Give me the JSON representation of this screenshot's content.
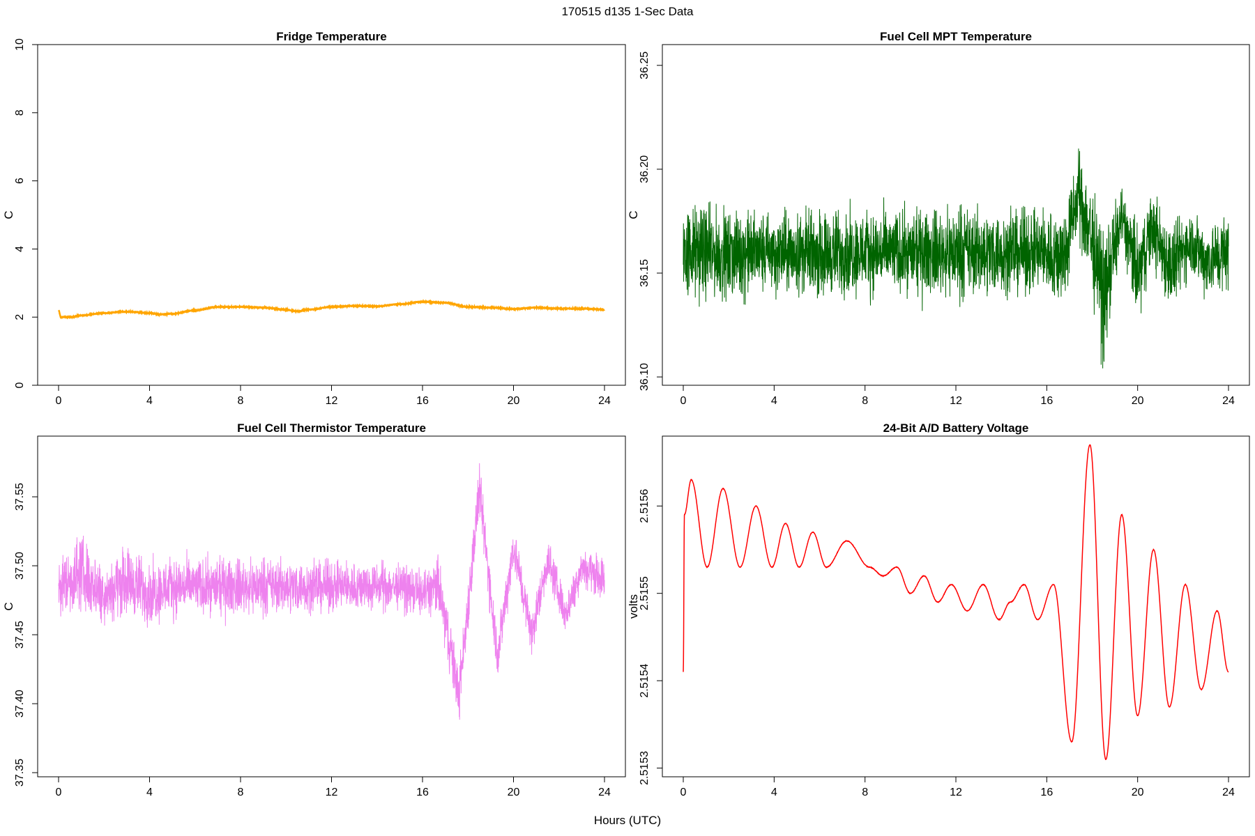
{
  "figure": {
    "title": "170515   d135   1-Sec Data",
    "xlabel": "Hours (UTC)"
  },
  "chart_data": [
    {
      "type": "line",
      "title": "Fridge Temperature",
      "ylabel": "C",
      "xlabel": "Hours (UTC)",
      "color": "#FFA500",
      "xlim": [
        0,
        24
      ],
      "ylim": [
        0,
        10
      ],
      "xticks": [
        0,
        4,
        8,
        12,
        16,
        20,
        24
      ],
      "yticks": [
        0,
        2,
        4,
        6,
        8,
        10
      ],
      "ytick_labels": [
        "0",
        "2",
        "4",
        "6",
        "8",
        "10"
      ],
      "noise": 0.02,
      "x": [
        0,
        0.1,
        0.5,
        1,
        2,
        3,
        4,
        4.5,
        5,
        6,
        7,
        8,
        9,
        10,
        10.5,
        11,
        12,
        13,
        14,
        15,
        16,
        17,
        18,
        19,
        20,
        21,
        22,
        23,
        24
      ],
      "y": [
        2.2,
        2.0,
        2.0,
        2.05,
        2.12,
        2.16,
        2.12,
        2.08,
        2.1,
        2.2,
        2.3,
        2.3,
        2.28,
        2.22,
        2.17,
        2.22,
        2.3,
        2.33,
        2.32,
        2.38,
        2.45,
        2.42,
        2.3,
        2.28,
        2.24,
        2.28,
        2.25,
        2.25,
        2.22
      ]
    },
    {
      "type": "line",
      "title": "Fuel Cell MPT Temperature",
      "ylabel": "C",
      "xlabel": "Hours (UTC)",
      "color": "#006400",
      "xlim": [
        0,
        24
      ],
      "ylim": [
        36.096,
        36.26
      ],
      "xticks": [
        0,
        4,
        8,
        12,
        16,
        20,
        24
      ],
      "yticks": [
        36.1,
        36.15,
        36.2,
        36.25
      ],
      "ytick_labels": [
        "36.10",
        "36.15",
        "36.20",
        "36.25"
      ],
      "baseline": 36.16,
      "x": [
        0,
        1,
        2,
        3,
        4,
        5,
        6,
        7,
        8,
        9,
        10,
        11,
        12,
        13,
        14,
        15,
        16,
        16.7,
        17.4,
        17.9,
        18.5,
        19.3,
        20,
        20.6,
        21.5,
        22.3,
        23,
        24
      ],
      "envelope": [
        0.034,
        0.03,
        0.03,
        0.029,
        0.028,
        0.028,
        0.029,
        0.029,
        0.028,
        0.028,
        0.027,
        0.028,
        0.031,
        0.029,
        0.028,
        0.028,
        0.029,
        0.034,
        0.028,
        0.04,
        0.044,
        0.02,
        0.034,
        0.024,
        0.03,
        0.022,
        0.024,
        0.028
      ],
      "offset": [
        0,
        0,
        -0.002,
        0,
        -0.001,
        0,
        -0.001,
        0,
        0,
        0,
        0,
        0,
        0,
        0,
        0,
        0,
        0,
        -0.004,
        0.028,
        0.01,
        -0.022,
        0.018,
        -0.012,
        0.012,
        -0.008,
        0.006,
        -0.004,
        0
      ]
    },
    {
      "type": "line",
      "title": "Fuel Cell Thermistor Temperature",
      "ylabel": "C",
      "xlabel": "Hours (UTC)",
      "color": "#EE82EE",
      "xlim": [
        0,
        24
      ],
      "ylim": [
        37.347,
        37.594
      ],
      "xticks": [
        0,
        4,
        8,
        12,
        16,
        20,
        24
      ],
      "yticks": [
        37.35,
        37.4,
        37.45,
        37.5,
        37.55
      ],
      "ytick_labels": [
        "37.35",
        "37.40",
        "37.45",
        "37.50",
        "37.55"
      ],
      "baseline": 37.485,
      "x": [
        0,
        1,
        2,
        3,
        4,
        5,
        6,
        7,
        8,
        9,
        10,
        11,
        12,
        13,
        14,
        15,
        16,
        16.7,
        17.3,
        17.6,
        18.5,
        19.3,
        20,
        20.8,
        21.5,
        22.3,
        23,
        24
      ],
      "envelope": [
        0.03,
        0.04,
        0.03,
        0.035,
        0.032,
        0.03,
        0.028,
        0.028,
        0.028,
        0.028,
        0.027,
        0.026,
        0.026,
        0.025,
        0.025,
        0.024,
        0.024,
        0.03,
        0.03,
        0.028,
        0.028,
        0.025,
        0.025,
        0.022,
        0.022,
        0.02,
        0.02,
        0.022
      ],
      "offset": [
        0,
        0.01,
        -0.005,
        0.005,
        -0.005,
        0,
        0,
        0,
        0,
        0,
        0,
        0,
        0,
        0,
        0,
        0,
        -0.005,
        0,
        -0.05,
        -0.08,
        0.07,
        -0.05,
        0.03,
        -0.035,
        0.02,
        -0.02,
        0.015,
        0.005
      ]
    },
    {
      "type": "line",
      "title": "24-Bit A/D Battery Voltage",
      "ylabel": "volts",
      "xlabel": "Hours (UTC)",
      "color": "#FF0000",
      "xlim": [
        0,
        24
      ],
      "ylim": [
        2.51529,
        2.51568
      ],
      "xticks": [
        0,
        4,
        8,
        12,
        16,
        20,
        24
      ],
      "yticks": [
        2.5153,
        2.5154,
        2.5155,
        2.5156
      ],
      "ytick_labels": [
        "2.5153",
        "2.5154",
        "2.5155",
        "2.5156"
      ],
      "noise": 6e-07,
      "x": [
        0,
        0.05,
        0.35,
        1.05,
        1.75,
        2.5,
        3.2,
        3.9,
        4.5,
        5.1,
        5.7,
        6.3,
        7.2,
        8.2,
        8.8,
        9.4,
        10,
        10.6,
        11.2,
        11.8,
        12.5,
        13.2,
        13.9,
        14.4,
        15,
        15.6,
        16.3,
        17.1,
        17.9,
        18.6,
        19.3,
        20,
        20.7,
        21.4,
        22.1,
        22.8,
        23.5,
        24
      ],
      "y": [
        2.51541,
        2.51559,
        2.51563,
        2.51553,
        2.51562,
        2.51553,
        2.5156,
        2.51553,
        2.51558,
        2.51553,
        2.51557,
        2.51553,
        2.51556,
        2.51553,
        2.51552,
        2.51553,
        2.5155,
        2.51552,
        2.51549,
        2.51551,
        2.51548,
        2.51551,
        2.51547,
        2.51549,
        2.51551,
        2.51547,
        2.51551,
        2.51533,
        2.51567,
        2.51531,
        2.51559,
        2.51536,
        2.51555,
        2.51537,
        2.51551,
        2.51539,
        2.51548,
        2.51541
      ]
    }
  ]
}
